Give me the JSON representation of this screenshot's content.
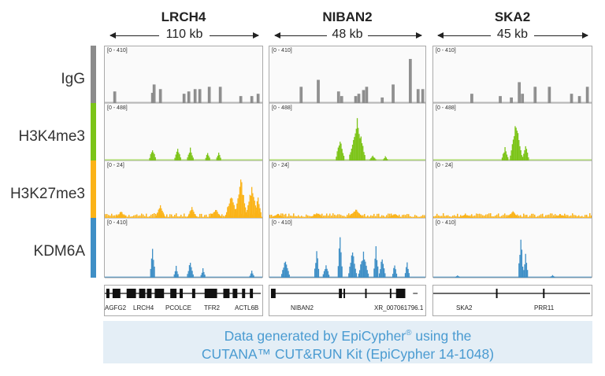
{
  "loci": [
    {
      "name": "LRCH4",
      "size": "110 kb",
      "genes": [
        "AGFG2",
        "LRCH4",
        "PCOLCE",
        "TFR2",
        "ACTL6B"
      ]
    },
    {
      "name": "NIBAN2",
      "size": "48 kb",
      "genes": [
        "NIBAN2",
        "XR_007061796.1"
      ]
    },
    {
      "name": "SKA2",
      "size": "45 kb",
      "genes": [
        "SKA2",
        "PRR11"
      ]
    }
  ],
  "tracks": [
    {
      "name": "IgG",
      "color": "#8c8c8c",
      "ranges": [
        "[0 - 410]",
        "[0 - 410]",
        "[0 - 410]"
      ]
    },
    {
      "name": "H3K4me3",
      "color": "#7cc418",
      "ranges": [
        "[0 - 488]",
        "[0 - 488]",
        "[0 - 488]"
      ]
    },
    {
      "name": "H3K27me3",
      "color": "#fbb318",
      "ranges": [
        "[0 - 24]",
        "[0 - 24]",
        "[0 - 24]"
      ]
    },
    {
      "name": "KDM6A",
      "color": "#3f8fc6",
      "ranges": [
        "[0 - 410]",
        "[0 - 410]",
        "[0 - 410]"
      ]
    }
  ],
  "credit": {
    "line1_pre": "Data generated by EpiCypher",
    "line1_reg": "®",
    "line1_post": " using the",
    "line2": "CUTANA™ CUT&RUN Kit (EpiCypher 14-1048)"
  }
}
